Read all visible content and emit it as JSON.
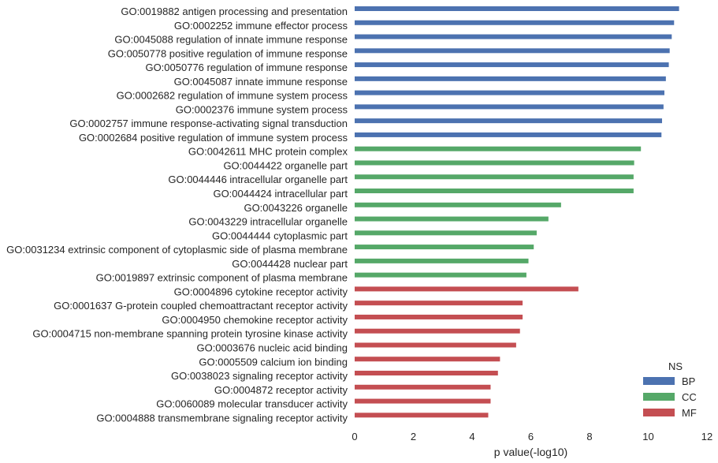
{
  "chart_data": {
    "type": "bar",
    "orientation": "horizontal",
    "categories": [
      "GO:0019882 antigen processing and presentation",
      "GO:0002252 immune effector process",
      "GO:0045088 regulation of innate immune response",
      "GO:0050778 positive regulation of immune response",
      "GO:0050776 regulation of immune response",
      "GO:0045087 innate immune response",
      "GO:0002682 regulation of immune system process",
      "GO:0002376 immune system process",
      "GO:0002757 immune response-activating signal transduction",
      "GO:0002684 positive regulation of immune system process",
      "GO:0042611 MHC protein complex",
      "GO:0044422 organelle part",
      "GO:0044446 intracellular organelle part",
      "GO:0044424 intracellular part",
      "GO:0043226 organelle",
      "GO:0043229 intracellular organelle",
      "GO:0044444 cytoplasmic part",
      "GO:0031234 extrinsic component of cytoplasmic side of plasma membrane",
      "GO:0044428 nuclear part",
      "GO:0019897 extrinsic component of plasma membrane",
      "GO:0004896 cytokine receptor activity",
      "GO:0001637 G-protein coupled chemoattractant receptor activity",
      "GO:0004950 chemokine receptor activity",
      "GO:0004715 non-membrane spanning protein tyrosine kinase activity",
      "GO:0003676 nucleic acid binding",
      "GO:0005509 calcium ion binding",
      "GO:0038023 signaling receptor activity",
      "GO:0004872 receptor activity",
      "GO:0060089 molecular transducer activity",
      "GO:0004888 transmembrane signaling receptor activity"
    ],
    "values": [
      11.05,
      10.88,
      10.8,
      10.73,
      10.7,
      10.6,
      10.55,
      10.52,
      10.47,
      10.45,
      9.75,
      9.52,
      9.5,
      9.5,
      7.03,
      6.6,
      6.2,
      6.1,
      5.92,
      5.85,
      7.62,
      5.72,
      5.72,
      5.63,
      5.5,
      4.95,
      4.88,
      4.63,
      4.63,
      4.55
    ],
    "groups": [
      "BP",
      "BP",
      "BP",
      "BP",
      "BP",
      "BP",
      "BP",
      "BP",
      "BP",
      "BP",
      "CC",
      "CC",
      "CC",
      "CC",
      "CC",
      "CC",
      "CC",
      "CC",
      "CC",
      "CC",
      "MF",
      "MF",
      "MF",
      "MF",
      "MF",
      "MF",
      "MF",
      "MF",
      "MF",
      "MF"
    ],
    "xlabel": "p value(-log10)",
    "ylabel": "",
    "xlim": [
      0,
      12
    ],
    "xticks": [
      0,
      2,
      4,
      6,
      8,
      10,
      12
    ],
    "grid": false,
    "legend": {
      "title": "NS",
      "placement": "bottom-right",
      "entries": [
        {
          "name": "BP",
          "color": "#4c72b0"
        },
        {
          "name": "CC",
          "color": "#55a868"
        },
        {
          "name": "MF",
          "color": "#c44e52"
        }
      ]
    }
  }
}
